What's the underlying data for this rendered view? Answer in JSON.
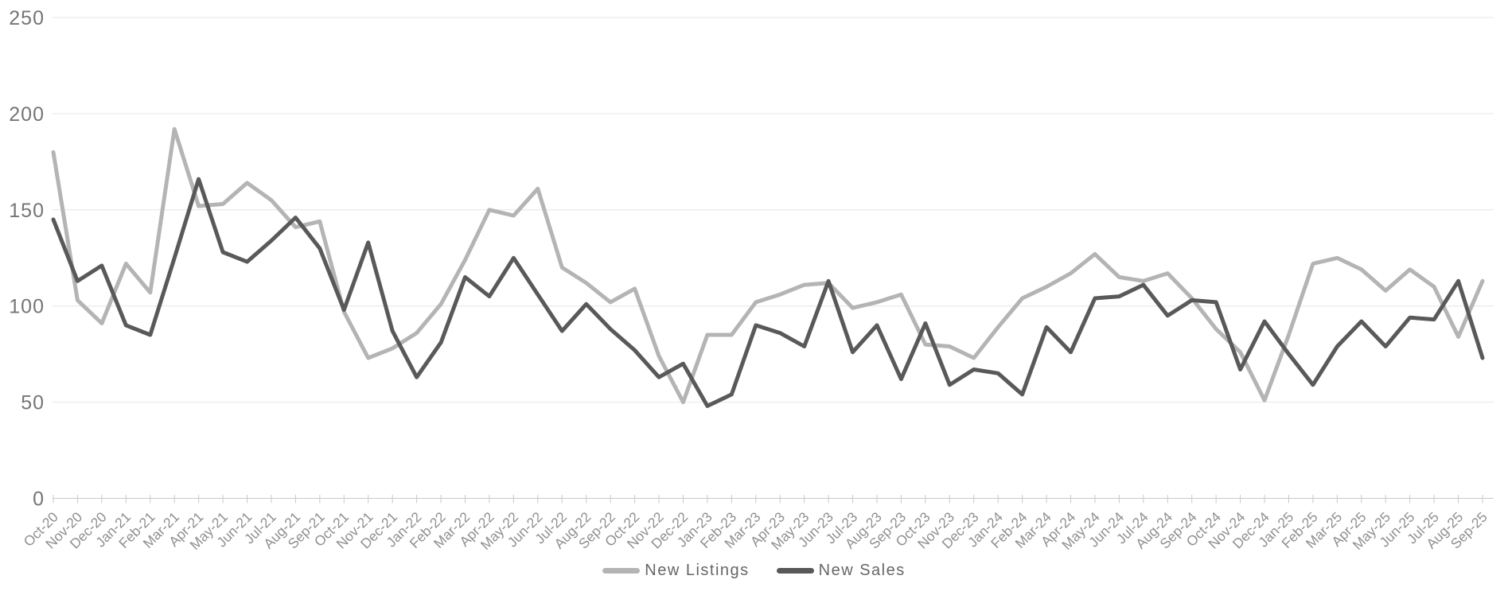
{
  "chart_data": {
    "type": "line",
    "title": "",
    "xlabel": "",
    "ylabel": "",
    "ylim": [
      0,
      250
    ],
    "yticks": [
      0,
      50,
      100,
      150,
      200,
      250
    ],
    "grid": "horizontal",
    "legend_position": "bottom-center",
    "colors": {
      "gridline": "#e6e6e6",
      "axis": "#c9c9c9",
      "y_labels": "#757575",
      "x_labels": "#8f8f8f",
      "legend_text": "#666666"
    },
    "categories": [
      "Oct-20",
      "Nov-20",
      "Dec-20",
      "Jan-21",
      "Feb-21",
      "Mar-21",
      "Apr-21",
      "May-21",
      "Jun-21",
      "Jul-21",
      "Aug-21",
      "Sep-21",
      "Oct-21",
      "Nov-21",
      "Dec-21",
      "Jan-22",
      "Feb-22",
      "Mar-22",
      "Apr-22",
      "May-22",
      "Jun-22",
      "Jul-22",
      "Aug-22",
      "Sep-22",
      "Oct-22",
      "Nov-22",
      "Dec-22",
      "Jan-23",
      "Feb-23",
      "Mar-23",
      "Apr-23",
      "May-23",
      "Jun-23",
      "Jul-23",
      "Aug-23",
      "Sep-23",
      "Oct-23",
      "Nov-23",
      "Dec-23",
      "Jan-24",
      "Feb-24",
      "Mar-24",
      "Apr-24",
      "May-24",
      "Jun-24",
      "Jul-24",
      "Aug-24",
      "Sep-24",
      "Oct-24",
      "Nov-24",
      "Dec-24",
      "Jan-25",
      "Feb-25",
      "Mar-25",
      "Apr-25",
      "May-25",
      "Jun-25",
      "Jul-25",
      "Aug-25",
      "Sep-25"
    ],
    "series": [
      {
        "name": "New Listings",
        "color": "#b4b4b4",
        "values": [
          180,
          103,
          91,
          122,
          107,
          192,
          152,
          153,
          164,
          155,
          141,
          144,
          97,
          73,
          78,
          86,
          101,
          124,
          150,
          147,
          161,
          120,
          112,
          102,
          109,
          74,
          50,
          85,
          85,
          102,
          106,
          111,
          112,
          99,
          102,
          106,
          80,
          79,
          73,
          89,
          104,
          110,
          117,
          127,
          115,
          113,
          117,
          104,
          88,
          76,
          51,
          85,
          122,
          125,
          119,
          108,
          119,
          110,
          84,
          113
        ]
      },
      {
        "name": "New Sales",
        "color": "#595959",
        "values": [
          145,
          113,
          121,
          90,
          85,
          125,
          166,
          128,
          123,
          134,
          146,
          130,
          98,
          133,
          87,
          63,
          81,
          115,
          105,
          125,
          106,
          87,
          101,
          88,
          77,
          63,
          70,
          48,
          54,
          90,
          86,
          79,
          113,
          76,
          90,
          62,
          91,
          59,
          67,
          65,
          54,
          89,
          76,
          104,
          105,
          111,
          95,
          103,
          102,
          67,
          92,
          75,
          59,
          79,
          92,
          79,
          94,
          93,
          113,
          73
        ]
      }
    ]
  }
}
